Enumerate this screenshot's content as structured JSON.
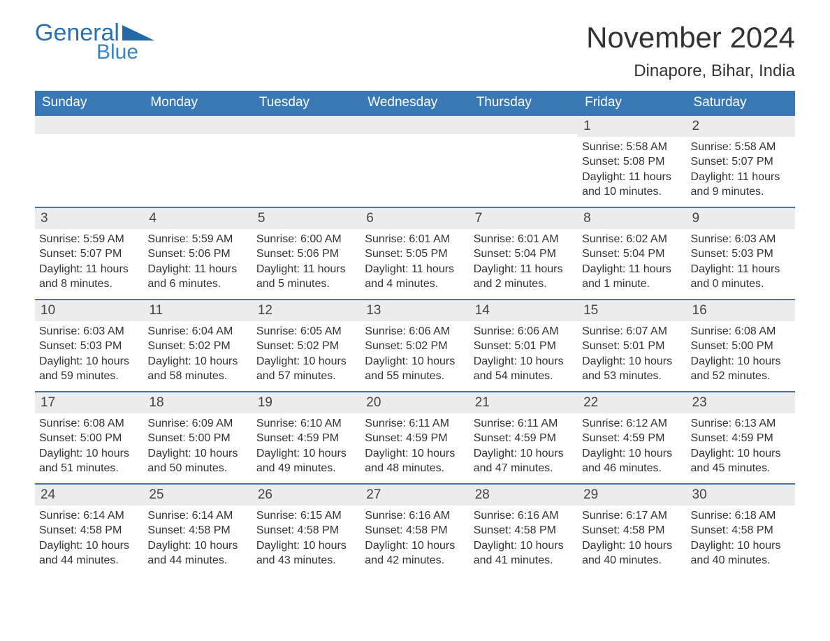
{
  "brand": {
    "word1": "General",
    "word2": "Blue",
    "color_primary": "#2b6fb0",
    "color_secondary": "#3d84c6"
  },
  "title": "November 2024",
  "location": "Dinapore, Bihar, India",
  "header_bg": "#3a78b5",
  "band_bg": "#ececec",
  "text_color": "#333333",
  "fontsize_title": 42,
  "fontsize_location": 24,
  "fontsize_header": 19,
  "fontsize_body": 16,
  "day_headers": [
    "Sunday",
    "Monday",
    "Tuesday",
    "Wednesday",
    "Thursday",
    "Friday",
    "Saturday"
  ],
  "weeks": [
    [
      null,
      null,
      null,
      null,
      null,
      {
        "n": "1",
        "sr": "Sunrise: 5:58 AM",
        "ss": "Sunset: 5:08 PM",
        "dl": "Daylight: 11 hours and 10 minutes."
      },
      {
        "n": "2",
        "sr": "Sunrise: 5:58 AM",
        "ss": "Sunset: 5:07 PM",
        "dl": "Daylight: 11 hours and 9 minutes."
      }
    ],
    [
      {
        "n": "3",
        "sr": "Sunrise: 5:59 AM",
        "ss": "Sunset: 5:07 PM",
        "dl": "Daylight: 11 hours and 8 minutes."
      },
      {
        "n": "4",
        "sr": "Sunrise: 5:59 AM",
        "ss": "Sunset: 5:06 PM",
        "dl": "Daylight: 11 hours and 6 minutes."
      },
      {
        "n": "5",
        "sr": "Sunrise: 6:00 AM",
        "ss": "Sunset: 5:06 PM",
        "dl": "Daylight: 11 hours and 5 minutes."
      },
      {
        "n": "6",
        "sr": "Sunrise: 6:01 AM",
        "ss": "Sunset: 5:05 PM",
        "dl": "Daylight: 11 hours and 4 minutes."
      },
      {
        "n": "7",
        "sr": "Sunrise: 6:01 AM",
        "ss": "Sunset: 5:04 PM",
        "dl": "Daylight: 11 hours and 2 minutes."
      },
      {
        "n": "8",
        "sr": "Sunrise: 6:02 AM",
        "ss": "Sunset: 5:04 PM",
        "dl": "Daylight: 11 hours and 1 minute."
      },
      {
        "n": "9",
        "sr": "Sunrise: 6:03 AM",
        "ss": "Sunset: 5:03 PM",
        "dl": "Daylight: 11 hours and 0 minutes."
      }
    ],
    [
      {
        "n": "10",
        "sr": "Sunrise: 6:03 AM",
        "ss": "Sunset: 5:03 PM",
        "dl": "Daylight: 10 hours and 59 minutes."
      },
      {
        "n": "11",
        "sr": "Sunrise: 6:04 AM",
        "ss": "Sunset: 5:02 PM",
        "dl": "Daylight: 10 hours and 58 minutes."
      },
      {
        "n": "12",
        "sr": "Sunrise: 6:05 AM",
        "ss": "Sunset: 5:02 PM",
        "dl": "Daylight: 10 hours and 57 minutes."
      },
      {
        "n": "13",
        "sr": "Sunrise: 6:06 AM",
        "ss": "Sunset: 5:02 PM",
        "dl": "Daylight: 10 hours and 55 minutes."
      },
      {
        "n": "14",
        "sr": "Sunrise: 6:06 AM",
        "ss": "Sunset: 5:01 PM",
        "dl": "Daylight: 10 hours and 54 minutes."
      },
      {
        "n": "15",
        "sr": "Sunrise: 6:07 AM",
        "ss": "Sunset: 5:01 PM",
        "dl": "Daylight: 10 hours and 53 minutes."
      },
      {
        "n": "16",
        "sr": "Sunrise: 6:08 AM",
        "ss": "Sunset: 5:00 PM",
        "dl": "Daylight: 10 hours and 52 minutes."
      }
    ],
    [
      {
        "n": "17",
        "sr": "Sunrise: 6:08 AM",
        "ss": "Sunset: 5:00 PM",
        "dl": "Daylight: 10 hours and 51 minutes."
      },
      {
        "n": "18",
        "sr": "Sunrise: 6:09 AM",
        "ss": "Sunset: 5:00 PM",
        "dl": "Daylight: 10 hours and 50 minutes."
      },
      {
        "n": "19",
        "sr": "Sunrise: 6:10 AM",
        "ss": "Sunset: 4:59 PM",
        "dl": "Daylight: 10 hours and 49 minutes."
      },
      {
        "n": "20",
        "sr": "Sunrise: 6:11 AM",
        "ss": "Sunset: 4:59 PM",
        "dl": "Daylight: 10 hours and 48 minutes."
      },
      {
        "n": "21",
        "sr": "Sunrise: 6:11 AM",
        "ss": "Sunset: 4:59 PM",
        "dl": "Daylight: 10 hours and 47 minutes."
      },
      {
        "n": "22",
        "sr": "Sunrise: 6:12 AM",
        "ss": "Sunset: 4:59 PM",
        "dl": "Daylight: 10 hours and 46 minutes."
      },
      {
        "n": "23",
        "sr": "Sunrise: 6:13 AM",
        "ss": "Sunset: 4:59 PM",
        "dl": "Daylight: 10 hours and 45 minutes."
      }
    ],
    [
      {
        "n": "24",
        "sr": "Sunrise: 6:14 AM",
        "ss": "Sunset: 4:58 PM",
        "dl": "Daylight: 10 hours and 44 minutes."
      },
      {
        "n": "25",
        "sr": "Sunrise: 6:14 AM",
        "ss": "Sunset: 4:58 PM",
        "dl": "Daylight: 10 hours and 44 minutes."
      },
      {
        "n": "26",
        "sr": "Sunrise: 6:15 AM",
        "ss": "Sunset: 4:58 PM",
        "dl": "Daylight: 10 hours and 43 minutes."
      },
      {
        "n": "27",
        "sr": "Sunrise: 6:16 AM",
        "ss": "Sunset: 4:58 PM",
        "dl": "Daylight: 10 hours and 42 minutes."
      },
      {
        "n": "28",
        "sr": "Sunrise: 6:16 AM",
        "ss": "Sunset: 4:58 PM",
        "dl": "Daylight: 10 hours and 41 minutes."
      },
      {
        "n": "29",
        "sr": "Sunrise: 6:17 AM",
        "ss": "Sunset: 4:58 PM",
        "dl": "Daylight: 10 hours and 40 minutes."
      },
      {
        "n": "30",
        "sr": "Sunrise: 6:18 AM",
        "ss": "Sunset: 4:58 PM",
        "dl": "Daylight: 10 hours and 40 minutes."
      }
    ]
  ]
}
